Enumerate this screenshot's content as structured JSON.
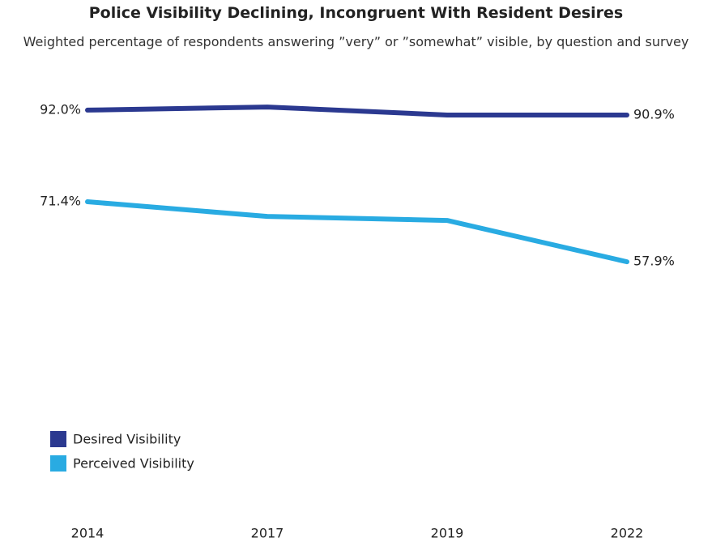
{
  "chart_data": {
    "type": "line",
    "title": "Police Visibility Declining, Incongruent With Resident Desires",
    "subtitle": "Weighted percentage of respondents answering ”very” or ”somewhat” visible, by question and survey",
    "categories": [
      "2014",
      "2017",
      "2019",
      "2022"
    ],
    "series": [
      {
        "name": "Desired Visibility",
        "color": "#2b3990",
        "values": [
          92.0,
          92.7,
          90.9,
          90.9
        ],
        "value_labels": [
          "92.0%",
          null,
          null,
          "90.9%"
        ]
      },
      {
        "name": "Perceived Visibility",
        "color": "#29abe2",
        "values": [
          71.4,
          68.1,
          67.2,
          57.9
        ],
        "value_labels": [
          "71.4%",
          null,
          null,
          "57.9%"
        ]
      }
    ],
    "ylim": [
      0,
      100
    ],
    "legend": "lower left"
  }
}
